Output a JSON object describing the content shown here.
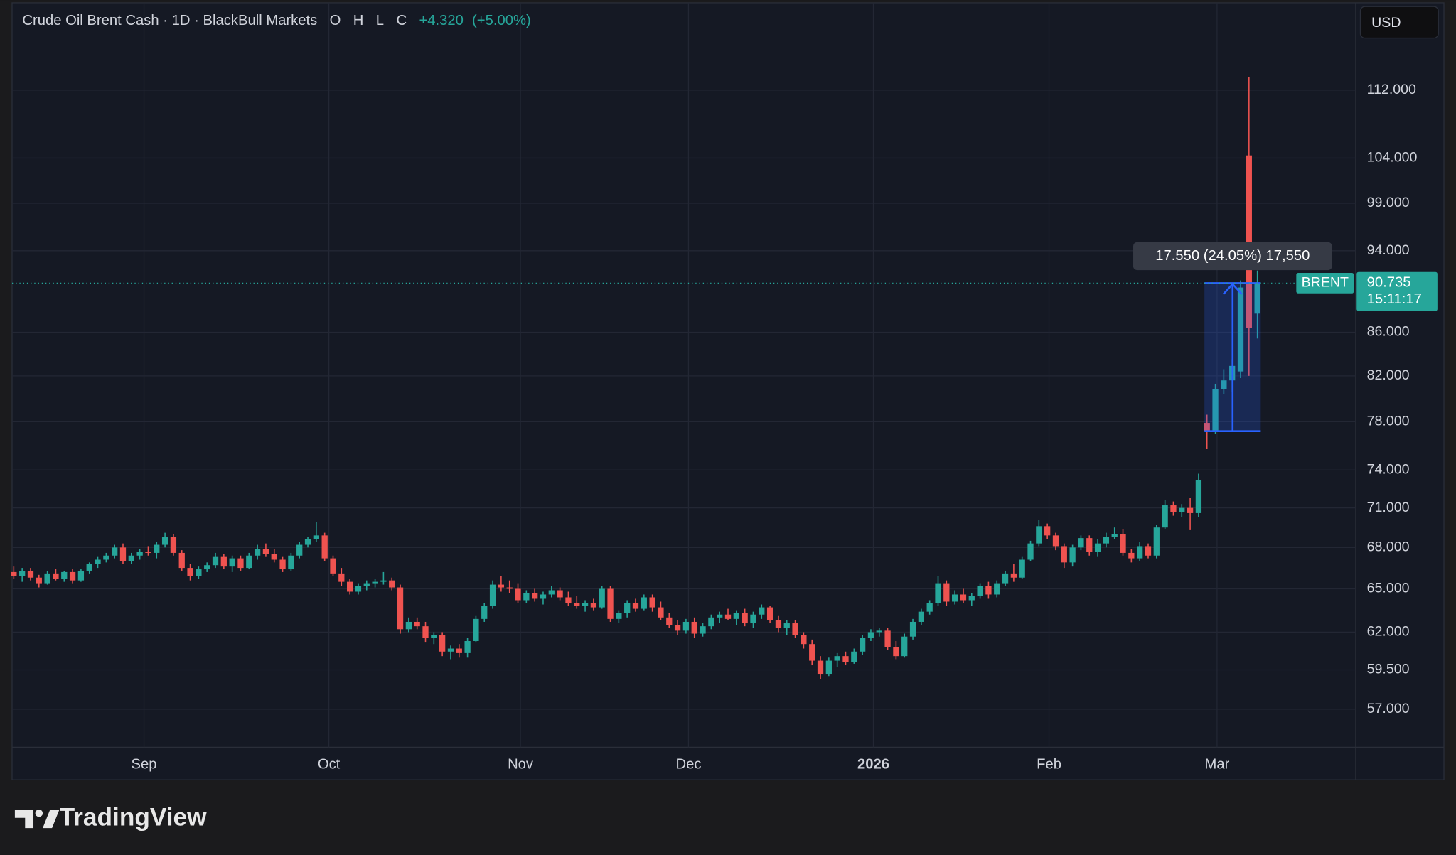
{
  "chart_data": {
    "type": "candlestick",
    "title": "Crude Oil Brent Cash · 1D · BlackBull Markets",
    "ohlc_letters": [
      "O",
      "H",
      "L",
      "C"
    ],
    "change": "+4.320",
    "change_pct": "(+5.00%)",
    "currency": "USD",
    "symbol": "BRENT",
    "countdown": "15:11:17",
    "measure_label": "17.550 (24.05%) 17,550",
    "brand": "TradingView",
    "log": true,
    "grid": true,
    "up_color": "#26a69a",
    "down_color": "#ef5350",
    "ylim": [
      54.68,
      123.2
    ],
    "yticks": [
      {
        "value": 57,
        "label": "57.000"
      },
      {
        "value": 59.5,
        "label": "59.500"
      },
      {
        "value": 62,
        "label": "62.000"
      },
      {
        "value": 65,
        "label": "65.000"
      },
      {
        "value": 68,
        "label": "68.000"
      },
      {
        "value": 71,
        "label": "71.000"
      },
      {
        "value": 74,
        "label": "74.000"
      },
      {
        "value": 78,
        "label": "78.000"
      },
      {
        "value": 82,
        "label": "82.000"
      },
      {
        "value": 86,
        "label": "86.000"
      },
      {
        "value": 94,
        "label": "94.000"
      },
      {
        "value": 99,
        "label": "99.000"
      },
      {
        "value": 104,
        "label": "104.000"
      },
      {
        "value": 112,
        "label": "112.000"
      }
    ],
    "xlim": [
      -0.2,
      159.7
    ],
    "xticks": [
      {
        "value": 15.5,
        "label": "Sep"
      },
      {
        "value": 37.5,
        "label": "Oct"
      },
      {
        "value": 60.3,
        "label": "Nov"
      },
      {
        "value": 80.3,
        "label": "Dec"
      },
      {
        "value": 102.3,
        "label": "2026"
      },
      {
        "value": 123.2,
        "label": "Feb"
      },
      {
        "value": 143.2,
        "label": "Mar"
      }
    ],
    "candles": [
      [
        66.2,
        66.6,
        65.7,
        65.9
      ],
      [
        65.9,
        66.5,
        65.5,
        66.3
      ],
      [
        66.3,
        66.5,
        65.6,
        65.8
      ],
      [
        65.8,
        66.0,
        65.1,
        65.4
      ],
      [
        65.4,
        66.3,
        65.3,
        66.1
      ],
      [
        66.1,
        66.4,
        65.6,
        65.7
      ],
      [
        65.7,
        66.3,
        65.5,
        66.2
      ],
      [
        66.2,
        66.4,
        65.4,
        65.6
      ],
      [
        65.6,
        66.4,
        65.5,
        66.3
      ],
      [
        66.3,
        66.9,
        66.1,
        66.8
      ],
      [
        66.8,
        67.3,
        66.5,
        67.1
      ],
      [
        67.1,
        67.6,
        66.9,
        67.4
      ],
      [
        67.4,
        68.2,
        67.2,
        68.0
      ],
      [
        68.0,
        68.3,
        66.8,
        67.0
      ],
      [
        67.0,
        67.6,
        66.8,
        67.4
      ],
      [
        67.4,
        67.9,
        67.1,
        67.7
      ],
      [
        67.7,
        68.1,
        67.4,
        67.6
      ],
      [
        67.6,
        68.4,
        67.2,
        68.2
      ],
      [
        68.2,
        69.1,
        68.0,
        68.8
      ],
      [
        68.8,
        69.0,
        67.4,
        67.6
      ],
      [
        67.6,
        67.8,
        66.3,
        66.5
      ],
      [
        66.5,
        66.8,
        65.6,
        65.9
      ],
      [
        65.9,
        66.6,
        65.7,
        66.4
      ],
      [
        66.4,
        66.9,
        66.2,
        66.7
      ],
      [
        66.7,
        67.6,
        66.5,
        67.3
      ],
      [
        67.3,
        67.5,
        66.4,
        66.6
      ],
      [
        66.6,
        67.4,
        66.2,
        67.2
      ],
      [
        67.2,
        67.4,
        66.3,
        66.5
      ],
      [
        66.5,
        67.6,
        66.4,
        67.4
      ],
      [
        67.4,
        68.2,
        67.1,
        67.9
      ],
      [
        67.9,
        68.3,
        67.3,
        67.5
      ],
      [
        67.5,
        67.9,
        66.9,
        67.1
      ],
      [
        67.1,
        67.3,
        66.2,
        66.4
      ],
      [
        66.4,
        67.6,
        66.3,
        67.4
      ],
      [
        67.4,
        68.4,
        67.2,
        68.2
      ],
      [
        68.2,
        68.8,
        68.0,
        68.6
      ],
      [
        68.6,
        69.9,
        68.4,
        68.9
      ],
      [
        68.9,
        69.1,
        67.0,
        67.2
      ],
      [
        67.2,
        67.4,
        65.9,
        66.1
      ],
      [
        66.1,
        66.5,
        65.2,
        65.5
      ],
      [
        65.5,
        65.7,
        64.6,
        64.8
      ],
      [
        64.8,
        65.4,
        64.6,
        65.2
      ],
      [
        65.2,
        65.6,
        64.9,
        65.4
      ],
      [
        65.4,
        65.7,
        65.1,
        65.5
      ],
      [
        65.5,
        66.2,
        65.3,
        65.6
      ],
      [
        65.6,
        65.8,
        64.9,
        65.1
      ],
      [
        65.1,
        65.3,
        61.9,
        62.2
      ],
      [
        62.2,
        63.0,
        62.0,
        62.7
      ],
      [
        62.7,
        63.0,
        62.2,
        62.4
      ],
      [
        62.4,
        62.7,
        61.3,
        61.6
      ],
      [
        61.6,
        62.0,
        61.2,
        61.8
      ],
      [
        61.8,
        62.0,
        60.4,
        60.7
      ],
      [
        60.7,
        61.1,
        60.2,
        60.9
      ],
      [
        60.9,
        61.2,
        60.3,
        60.6
      ],
      [
        60.6,
        61.6,
        60.3,
        61.4
      ],
      [
        61.4,
        63.1,
        61.3,
        62.9
      ],
      [
        62.9,
        64.0,
        62.7,
        63.8
      ],
      [
        63.8,
        65.6,
        63.6,
        65.3
      ],
      [
        65.3,
        65.9,
        64.8,
        65.1
      ],
      [
        65.1,
        65.6,
        64.7,
        65.0
      ],
      [
        65.0,
        65.4,
        64.0,
        64.2
      ],
      [
        64.2,
        64.9,
        64.0,
        64.7
      ],
      [
        64.7,
        65.0,
        64.1,
        64.3
      ],
      [
        64.3,
        64.8,
        63.9,
        64.6
      ],
      [
        64.6,
        65.2,
        64.4,
        64.9
      ],
      [
        64.9,
        65.1,
        64.2,
        64.4
      ],
      [
        64.4,
        64.8,
        63.8,
        64.0
      ],
      [
        64.0,
        64.5,
        63.6,
        63.8
      ],
      [
        63.8,
        64.2,
        63.4,
        64.0
      ],
      [
        64.0,
        64.3,
        63.5,
        63.7
      ],
      [
        63.7,
        65.2,
        63.6,
        65.0
      ],
      [
        65.0,
        65.2,
        62.7,
        62.9
      ],
      [
        62.9,
        63.5,
        62.6,
        63.3
      ],
      [
        63.3,
        64.2,
        63.0,
        64.0
      ],
      [
        64.0,
        64.3,
        63.4,
        63.6
      ],
      [
        63.6,
        64.6,
        63.5,
        64.4
      ],
      [
        64.4,
        64.6,
        63.4,
        63.7
      ],
      [
        63.7,
        64.1,
        62.8,
        63.0
      ],
      [
        63.0,
        63.3,
        62.3,
        62.5
      ],
      [
        62.5,
        62.8,
        61.8,
        62.1
      ],
      [
        62.1,
        62.9,
        61.9,
        62.7
      ],
      [
        62.7,
        63.0,
        61.6,
        61.9
      ],
      [
        61.9,
        62.6,
        61.7,
        62.4
      ],
      [
        62.4,
        63.2,
        62.2,
        63.0
      ],
      [
        63.0,
        63.4,
        62.6,
        63.2
      ],
      [
        63.2,
        63.6,
        62.8,
        62.9
      ],
      [
        62.9,
        63.5,
        62.5,
        63.3
      ],
      [
        63.3,
        63.6,
        62.4,
        62.6
      ],
      [
        62.6,
        63.4,
        62.3,
        63.2
      ],
      [
        63.2,
        63.9,
        62.9,
        63.7
      ],
      [
        63.7,
        63.8,
        62.6,
        62.8
      ],
      [
        62.8,
        63.1,
        62.0,
        62.3
      ],
      [
        62.3,
        62.8,
        61.8,
        62.6
      ],
      [
        62.6,
        62.8,
        61.6,
        61.8
      ],
      [
        61.8,
        62.0,
        60.9,
        61.2
      ],
      [
        61.2,
        61.5,
        59.8,
        60.1
      ],
      [
        60.1,
        60.4,
        58.9,
        59.2
      ],
      [
        59.2,
        60.3,
        59.1,
        60.1
      ],
      [
        60.1,
        60.6,
        59.7,
        60.4
      ],
      [
        60.4,
        60.7,
        59.8,
        60.0
      ],
      [
        60.0,
        60.9,
        59.9,
        60.7
      ],
      [
        60.7,
        61.8,
        60.5,
        61.6
      ],
      [
        61.6,
        62.2,
        61.4,
        62.0
      ],
      [
        62.0,
        62.3,
        61.7,
        62.1
      ],
      [
        62.1,
        62.3,
        60.8,
        61.0
      ],
      [
        61.0,
        61.4,
        60.2,
        60.4
      ],
      [
        60.4,
        61.9,
        60.3,
        61.7
      ],
      [
        61.7,
        62.9,
        61.5,
        62.7
      ],
      [
        62.7,
        63.6,
        62.5,
        63.4
      ],
      [
        63.4,
        64.2,
        63.2,
        64.0
      ],
      [
        64.0,
        65.9,
        63.8,
        65.4
      ],
      [
        65.4,
        65.6,
        63.8,
        64.1
      ],
      [
        64.1,
        64.9,
        63.9,
        64.6
      ],
      [
        64.6,
        65.0,
        64.0,
        64.2
      ],
      [
        64.2,
        64.7,
        63.8,
        64.5
      ],
      [
        64.5,
        65.4,
        64.3,
        65.2
      ],
      [
        65.2,
        65.5,
        64.3,
        64.6
      ],
      [
        64.6,
        65.6,
        64.4,
        65.4
      ],
      [
        65.4,
        66.3,
        65.2,
        66.1
      ],
      [
        66.1,
        66.8,
        65.5,
        65.8
      ],
      [
        65.8,
        67.3,
        65.7,
        67.1
      ],
      [
        67.1,
        68.5,
        67.0,
        68.3
      ],
      [
        68.3,
        70.1,
        68.1,
        69.6
      ],
      [
        69.6,
        69.8,
        68.6,
        68.9
      ],
      [
        68.9,
        69.1,
        67.8,
        68.1
      ],
      [
        68.1,
        68.3,
        66.5,
        66.9
      ],
      [
        66.9,
        68.2,
        66.6,
        68.0
      ],
      [
        68.0,
        68.9,
        67.8,
        68.7
      ],
      [
        68.7,
        68.9,
        67.4,
        67.7
      ],
      [
        67.7,
        68.6,
        67.3,
        68.3
      ],
      [
        68.3,
        69.1,
        68.0,
        68.8
      ],
      [
        68.8,
        69.5,
        68.6,
        69.0
      ],
      [
        69.0,
        69.4,
        67.4,
        67.6
      ],
      [
        67.6,
        67.9,
        66.9,
        67.2
      ],
      [
        67.2,
        68.4,
        67.0,
        68.1
      ],
      [
        68.1,
        68.3,
        67.2,
        67.4
      ],
      [
        67.4,
        69.7,
        67.2,
        69.5
      ],
      [
        69.5,
        71.6,
        69.4,
        71.2
      ],
      [
        71.2,
        71.5,
        70.4,
        70.7
      ],
      [
        70.7,
        71.3,
        70.3,
        71.0
      ],
      [
        71.0,
        71.8,
        69.3,
        70.6
      ],
      [
        70.6,
        73.7,
        70.3,
        73.185
      ],
      [
        77.9,
        78.6,
        75.7,
        77.2
      ],
      [
        77.2,
        81.3,
        77.0,
        80.8
      ],
      [
        80.8,
        82.6,
        80.4,
        81.6
      ],
      [
        81.6,
        83.5,
        80.6,
        82.9
      ],
      [
        82.4,
        91.0,
        81.8,
        90.3
      ],
      [
        104.3,
        113.6,
        82.0,
        86.415
      ],
      [
        87.765,
        91.985,
        85.415,
        90.735
      ]
    ]
  }
}
